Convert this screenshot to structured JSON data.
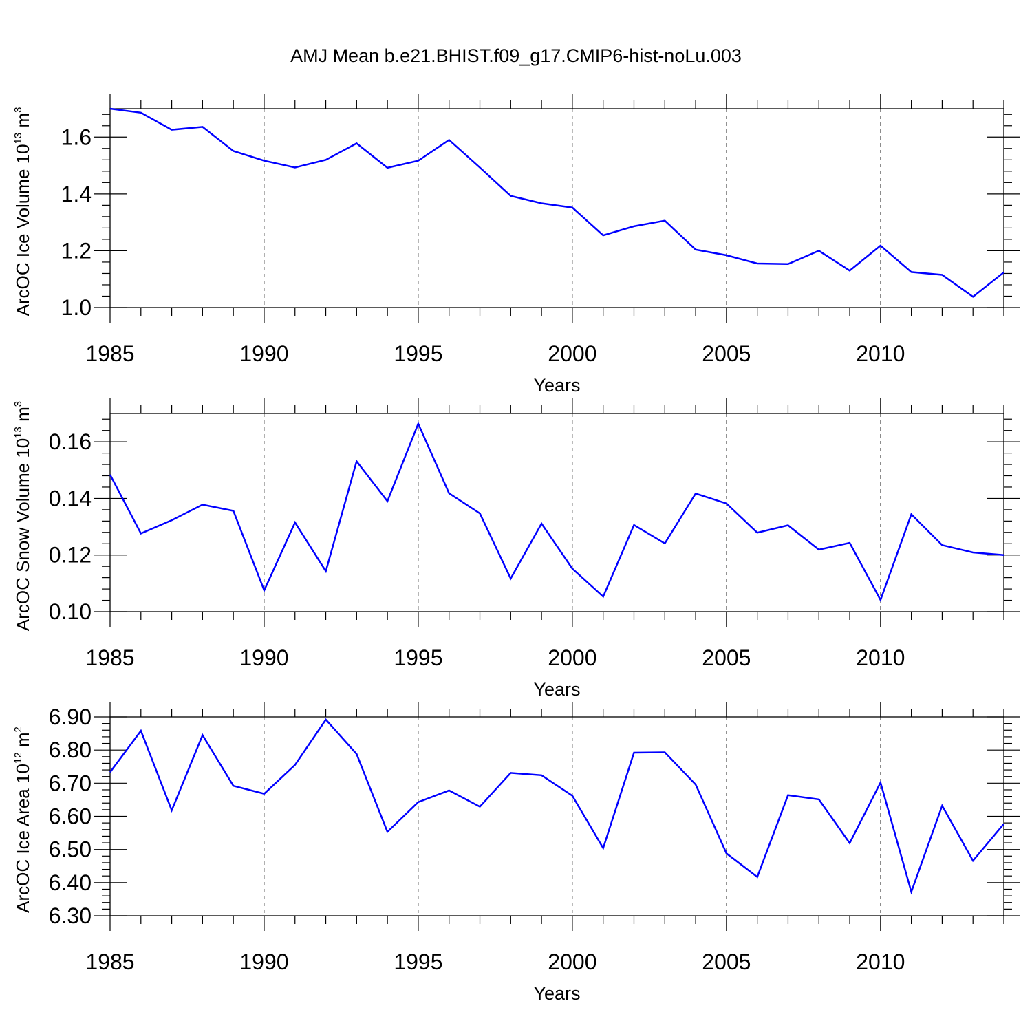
{
  "title": "AMJ Mean b.e21.BHIST.f09_g17.CMIP6-hist-noLu.003",
  "colors": {
    "line": "#0000ff",
    "axis": "#000000",
    "grid": "#555555"
  },
  "chart_data": [
    {
      "type": "line",
      "name": "ice-volume",
      "ylabel_main": "ArcOC Ice Volume 10",
      "ylabel_exp": "13",
      "ylabel_unit": "m",
      "ylabel_unit_exp": "3",
      "xlabel": "Years",
      "xlim": [
        1985,
        2014
      ],
      "ylim": [
        1.0,
        1.7
      ],
      "yticks": [
        "1.0",
        "1.2",
        "1.4",
        "1.6"
      ],
      "ytick_values": [
        1.0,
        1.2,
        1.4,
        1.6
      ],
      "xticks": [
        "1985",
        "1990",
        "1995",
        "2000",
        "2005",
        "2010"
      ],
      "xtick_values": [
        1985,
        1990,
        1995,
        2000,
        2005,
        2010
      ],
      "x": [
        1985,
        1986,
        1987,
        1988,
        1989,
        1990,
        1991,
        1992,
        1993,
        1994,
        1995,
        1996,
        1997,
        1998,
        1999,
        2000,
        2001,
        2002,
        2003,
        2004,
        2005,
        2006,
        2007,
        2008,
        2009,
        2010,
        2011,
        2012,
        2013,
        2014
      ],
      "values": [
        1.7,
        1.686,
        1.626,
        1.636,
        1.551,
        1.517,
        1.493,
        1.52,
        1.578,
        1.492,
        1.517,
        1.59,
        1.493,
        1.393,
        1.367,
        1.352,
        1.254,
        1.286,
        1.306,
        1.204,
        1.184,
        1.155,
        1.153,
        1.2,
        1.13,
        1.218,
        1.125,
        1.115,
        1.038,
        1.124
      ]
    },
    {
      "type": "line",
      "name": "snow-volume",
      "ylabel_main": "ArcOC Snow Volume 10",
      "ylabel_exp": "13",
      "ylabel_unit": "m",
      "ylabel_unit_exp": "3",
      "xlabel": "Years",
      "xlim": [
        1985,
        2014
      ],
      "ylim": [
        0.1,
        0.17
      ],
      "yticks": [
        "0.10",
        "0.12",
        "0.14",
        "0.16"
      ],
      "ytick_values": [
        0.1,
        0.12,
        0.14,
        0.16
      ],
      "xticks": [
        "1985",
        "1990",
        "1995",
        "2000",
        "2005",
        "2010"
      ],
      "xtick_values": [
        1985,
        1990,
        1995,
        2000,
        2005,
        2010
      ],
      "x": [
        1985,
        1986,
        1987,
        1988,
        1989,
        1990,
        1991,
        1992,
        1993,
        1994,
        1995,
        1996,
        1997,
        1998,
        1999,
        2000,
        2001,
        2002,
        2003,
        2004,
        2005,
        2006,
        2007,
        2008,
        2009,
        2010,
        2011,
        2012,
        2013,
        2014
      ],
      "values": [
        0.1484,
        0.1276,
        0.1323,
        0.1378,
        0.1356,
        0.1075,
        0.1315,
        0.1143,
        0.1531,
        0.139,
        0.1664,
        0.1418,
        0.1347,
        0.1117,
        0.1311,
        0.1152,
        0.1053,
        0.1306,
        0.1241,
        0.1417,
        0.1382,
        0.1279,
        0.1305,
        0.1219,
        0.1243,
        0.1041,
        0.1344,
        0.1235,
        0.1209,
        0.12
      ]
    },
    {
      "type": "line",
      "name": "ice-area",
      "ylabel_main": "ArcOC Ice Area 10",
      "ylabel_exp": "12",
      "ylabel_unit": "m",
      "ylabel_unit_exp": "2",
      "xlabel": "Years",
      "xlim": [
        1985,
        2014
      ],
      "ylim": [
        6.3,
        6.9
      ],
      "yticks": [
        "6.30",
        "6.40",
        "6.50",
        "6.60",
        "6.70",
        "6.80",
        "6.90"
      ],
      "ytick_values": [
        6.3,
        6.4,
        6.5,
        6.6,
        6.7,
        6.8,
        6.9
      ],
      "xticks": [
        "1985",
        "1990",
        "1995",
        "2000",
        "2005",
        "2010"
      ],
      "xtick_values": [
        1985,
        1990,
        1995,
        2000,
        2005,
        2010
      ],
      "x": [
        1985,
        1986,
        1987,
        1988,
        1989,
        1990,
        1991,
        1992,
        1993,
        1994,
        1995,
        1996,
        1997,
        1998,
        1999,
        2000,
        2001,
        2002,
        2003,
        2004,
        2005,
        2006,
        2007,
        2008,
        2009,
        2010,
        2011,
        2012,
        2013,
        2014
      ],
      "values": [
        6.733,
        6.858,
        6.618,
        6.845,
        6.692,
        6.668,
        6.755,
        6.892,
        6.788,
        6.553,
        6.643,
        6.678,
        6.629,
        6.731,
        6.724,
        6.662,
        6.504,
        6.792,
        6.793,
        6.696,
        6.488,
        6.417,
        6.664,
        6.651,
        6.519,
        6.702,
        6.372,
        6.632,
        6.466,
        6.577
      ]
    }
  ]
}
